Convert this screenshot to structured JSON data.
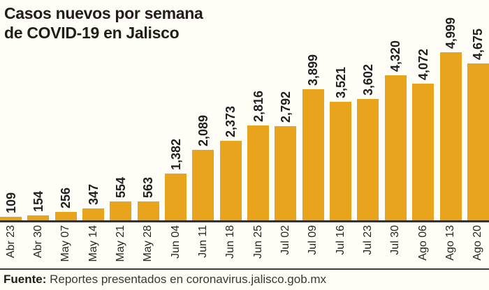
{
  "title": {
    "line1": "Casos nuevos por semana",
    "line2": "de COVID-19 en Jalisco"
  },
  "footer": {
    "label": "Fuente:",
    "text": "Reportes presentados en coronavirus.jalisco.gob.mx"
  },
  "colors": {
    "bar": "#E8A41C",
    "axis_line": "#35312C",
    "text": "#231F20",
    "background": "#FFFEF6"
  },
  "chart_data": {
    "type": "bar",
    "title": "Casos nuevos por semana de COVID-19 en Jalisco",
    "categories": [
      "Abr 23",
      "Abr 30",
      "May 07",
      "May 14",
      "May 21",
      "May 28",
      "Jun 04",
      "Jun 11",
      "Jun 18",
      "Jun 25",
      "Jul 02",
      "Jul 09",
      "Jul 16",
      "Jul 23",
      "Jul 30",
      "Ago 06",
      "Ago 13",
      "Ago 20"
    ],
    "values": [
      109,
      154,
      256,
      347,
      554,
      563,
      1382,
      2089,
      2373,
      2816,
      2792,
      3899,
      3521,
      3602,
      4320,
      4072,
      4999,
      4675
    ],
    "value_labels": [
      "109",
      "154",
      "256",
      "347",
      "554",
      "563",
      "1,382",
      "2,089",
      "2,373",
      "2,816",
      "2,792",
      "3,899",
      "3,521",
      "3,602",
      "4,320",
      "4,072",
      "4,999",
      "4,675"
    ],
    "xlabel": "",
    "ylabel": "",
    "ylim": [
      0,
      5000
    ],
    "grid": false,
    "legend": "none",
    "bar_color": "#E8A41C",
    "data_labels_rotated": true,
    "tick_labels_rotated": true,
    "source": "Fuente: Reportes presentados en coronavirus.jalisco.gob.mx"
  }
}
